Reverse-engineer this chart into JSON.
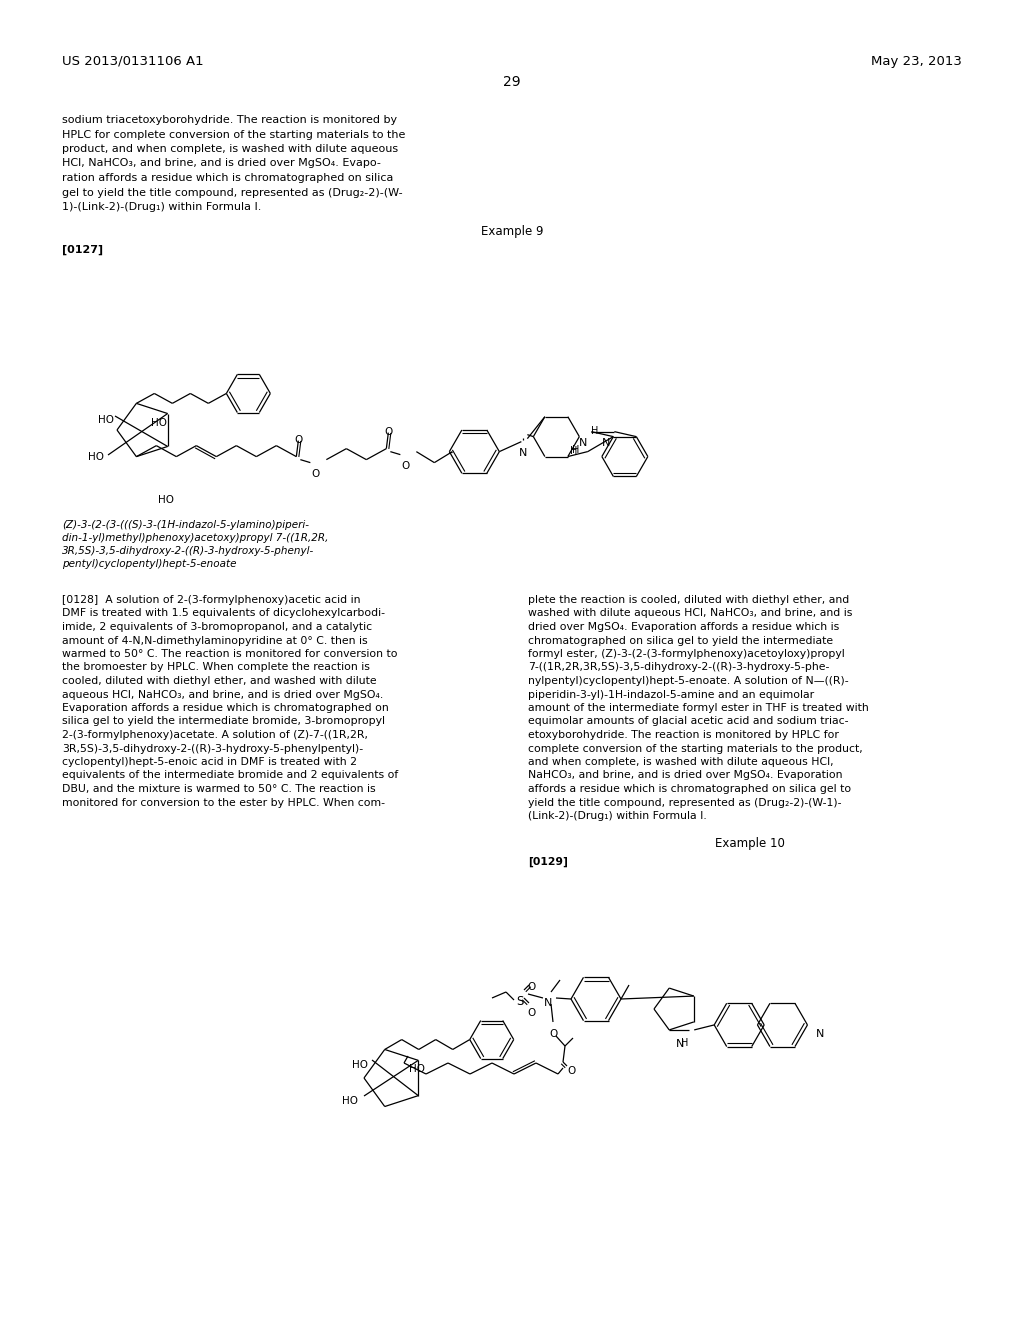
{
  "background_color": "#ffffff",
  "header_left": "US 2013/0131106 A1",
  "header_right": "May 23, 2013",
  "page_number": "29",
  "top_text": [
    "sodium triacetoxyborohydride. The reaction is monitored by",
    "HPLC for complete conversion of the starting materials to the",
    "product, and when complete, is washed with dilute aqueous",
    "HCl, NaHCO₃, and brine, and is dried over MgSO₄. Evapo-",
    "ration affords a residue which is chromatographed on silica",
    "gel to yield the title compound, represented as (Drug₂-2)-(W-",
    "1)-(Link-2)-(Drug₁) within Formula I."
  ],
  "example9_label": "Example 9",
  "para0127": "[0127]",
  "caption_left": [
    "(Z)-3-(2-(3-(((S)-3-(1H-indazol-5-ylamino)piperi-",
    "din-1-yl)methyl)phenoxy)acetoxy)propyl 7-((1R,2R,",
    "3R,5S)-3,5-dihydroxy-2-((R)-3-hydroxy-5-phenyl-",
    "pentyl)cyclopentyl)hept-5-enoate"
  ],
  "para0128_left": [
    "[0128]  A solution of 2-(3-formylphenoxy)acetic acid in",
    "DMF is treated with 1.5 equivalents of dicyclohexylcarbodi-",
    "imide, 2 equivalents of 3-bromopropanol, and a catalytic",
    "amount of 4-N,N-dimethylaminopyridine at 0° C. then is",
    "warmed to 50° C. The reaction is monitored for conversion to",
    "the bromoester by HPLC. When complete the reaction is",
    "cooled, diluted with diethyl ether, and washed with dilute",
    "aqueous HCl, NaHCO₃, and brine, and is dried over MgSO₄.",
    "Evaporation affords a residue which is chromatographed on",
    "silica gel to yield the intermediate bromide, 3-bromopropyl",
    "2-(3-formylphenoxy)acetate. A solution of (Z)-7-((1R,2R,",
    "3R,5S)-3,5-dihydroxy-2-((R)-3-hydroxy-5-phenylpentyl)-",
    "cyclopentyl)hept-5-enoic acid in DMF is treated with 2",
    "equivalents of the intermediate bromide and 2 equivalents of",
    "DBU, and the mixture is warmed to 50° C. The reaction is",
    "monitored for conversion to the ester by HPLC. When com-"
  ],
  "para0128_right": [
    "plete the reaction is cooled, diluted with diethyl ether, and",
    "washed with dilute aqueous HCl, NaHCO₃, and brine, and is",
    "dried over MgSO₄. Evaporation affords a residue which is",
    "chromatographed on silica gel to yield the intermediate",
    "formyl ester, (Z)-3-(2-(3-formylphenoxy)acetoyloxy)propyl",
    "7-((1R,2R,3R,5S)-3,5-dihydroxy-2-((R)-3-hydroxy-5-phe-",
    "nylpentyl)cyclopentyl)hept-5-enoate. A solution of N—((R)-",
    "piperidin-3-yl)-1H-indazol-5-amine and an equimolar",
    "amount of the intermediate formyl ester in THF is treated with",
    "equimolar amounts of glacial acetic acid and sodium triac-",
    "etoxyborohydride. The reaction is monitored by HPLC for",
    "complete conversion of the starting materials to the product,",
    "and when complete, is washed with dilute aqueous HCl,",
    "NaHCO₃, and brine, and is dried over MgSO₄. Evaporation",
    "affords a residue which is chromatographed on silica gel to",
    "yield the title compound, represented as (Drug₂-2)-(W-1)-",
    "(Link-2)-(Drug₁) within Formula I."
  ],
  "example10_label": "Example 10",
  "para0129": "[0129]",
  "body_fontsize": 8.0,
  "header_fontsize": 9.5
}
